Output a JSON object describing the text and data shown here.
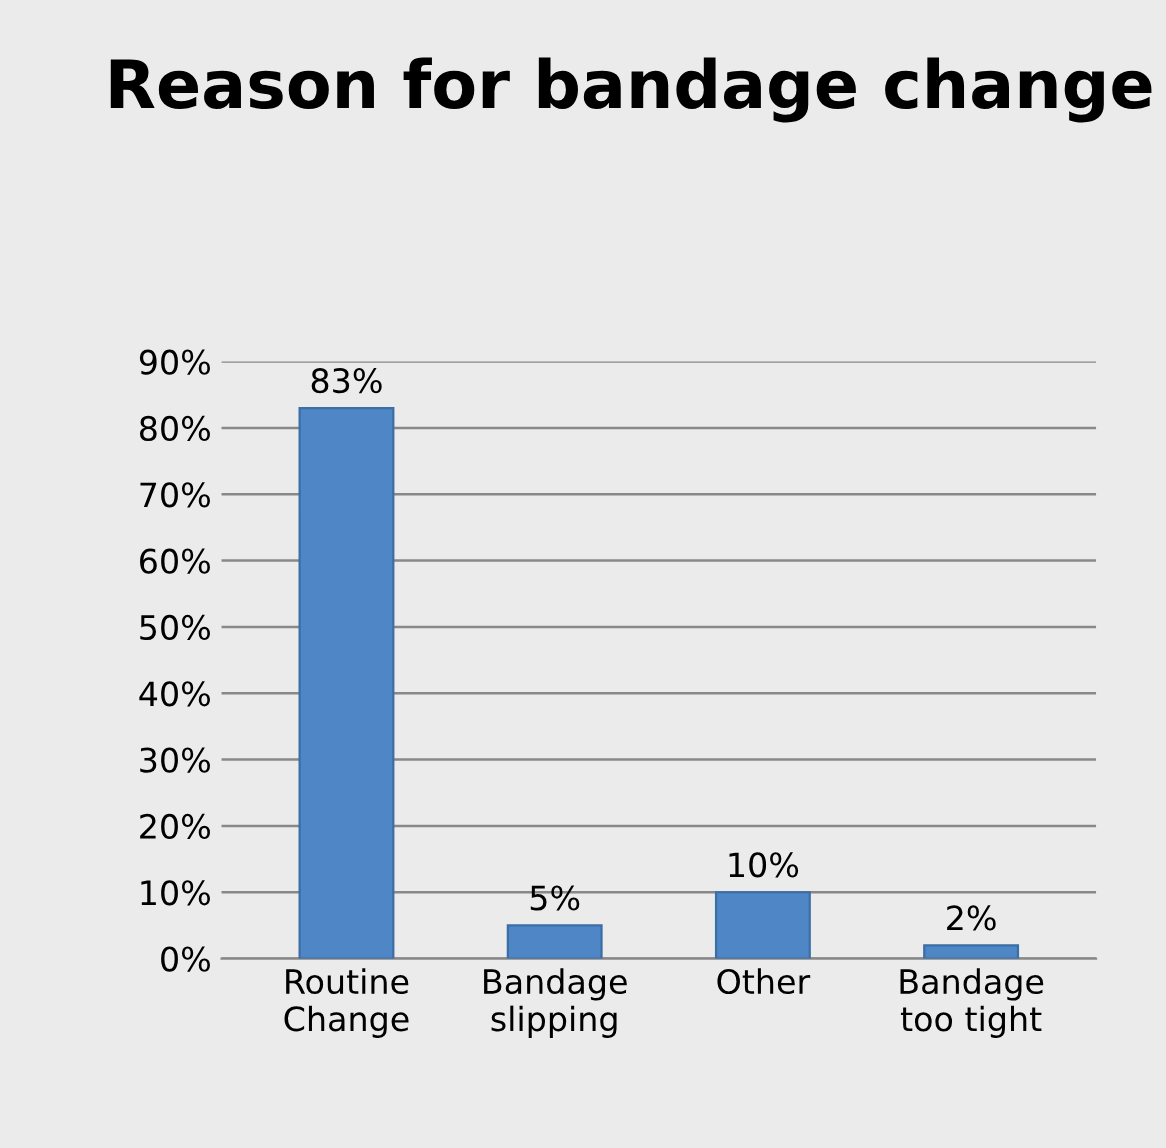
{
  "chart_data": {
    "type": "bar",
    "title": "Reason for bandage change",
    "categories": [
      "Routine\nChange",
      "Bandage\nslipping",
      "Other",
      "Bandage\ntoo tight"
    ],
    "values": [
      83,
      5,
      10,
      2
    ],
    "value_labels": [
      "83%",
      "5%",
      "10%",
      "2%"
    ],
    "color": "#4f86c6",
    "ylim": [
      0,
      90
    ],
    "yticks": [
      {
        "value": 0,
        "label": "0%"
      },
      {
        "value": 10,
        "label": "10%"
      },
      {
        "value": 20,
        "label": "20%"
      },
      {
        "value": 30,
        "label": "30%"
      },
      {
        "value": 40,
        "label": "40%"
      },
      {
        "value": 50,
        "label": "50%"
      },
      {
        "value": 60,
        "label": "60%"
      },
      {
        "value": 70,
        "label": "70%"
      },
      {
        "value": 80,
        "label": "80%"
      },
      {
        "value": 90,
        "label": "90%"
      }
    ],
    "grid": "y",
    "legend": false
  }
}
